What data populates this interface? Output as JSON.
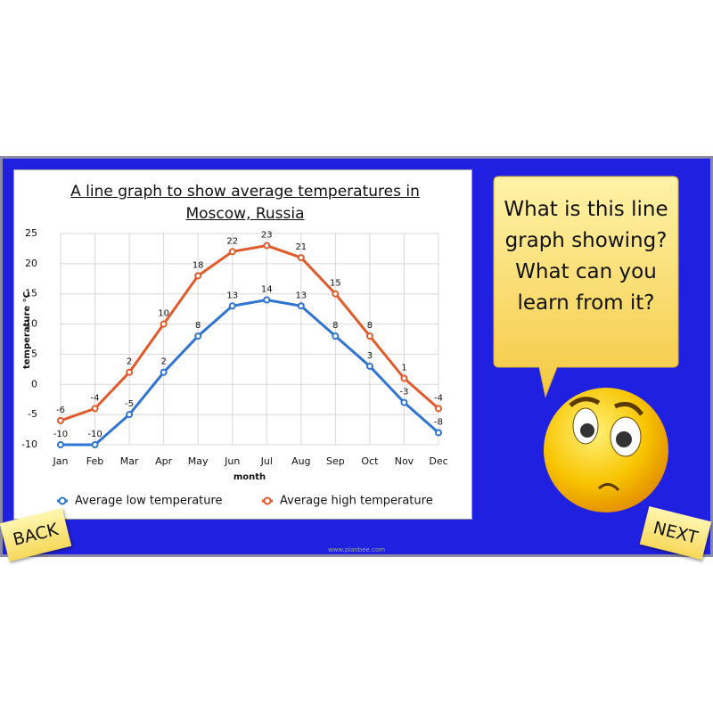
{
  "chart_data": {
    "type": "line",
    "title": "A line graph to show average temperatures in Moscow, Russia",
    "xlabel": "month",
    "ylabel": "temperature °C",
    "categories": [
      "Jan",
      "Feb",
      "Mar",
      "Apr",
      "May",
      "Jun",
      "Jul",
      "Aug",
      "Sep",
      "Oct",
      "Nov",
      "Dec"
    ],
    "series": [
      {
        "name": "Average low temperature",
        "color": "#2f74d0",
        "values": [
          -10,
          -10,
          -5,
          2,
          8,
          13,
          14,
          13,
          8,
          3,
          -3,
          -8
        ]
      },
      {
        "name": "Average high temperature",
        "color": "#e05a2b",
        "values": [
          -6,
          -4,
          2,
          10,
          18,
          22,
          23,
          21,
          15,
          8,
          1,
          -4
        ]
      }
    ],
    "ylim": [
      -10,
      25
    ],
    "yticks": [
      -10,
      -5,
      0,
      5,
      10,
      15,
      20,
      25
    ],
    "grid": true,
    "legend": "bottom",
    "data_labels": true
  },
  "bubble_text": "What is this line graph showing? What can you learn from it?",
  "buttons": {
    "back": "BACK",
    "next": "NEXT"
  },
  "footer": "www.planbee.com"
}
